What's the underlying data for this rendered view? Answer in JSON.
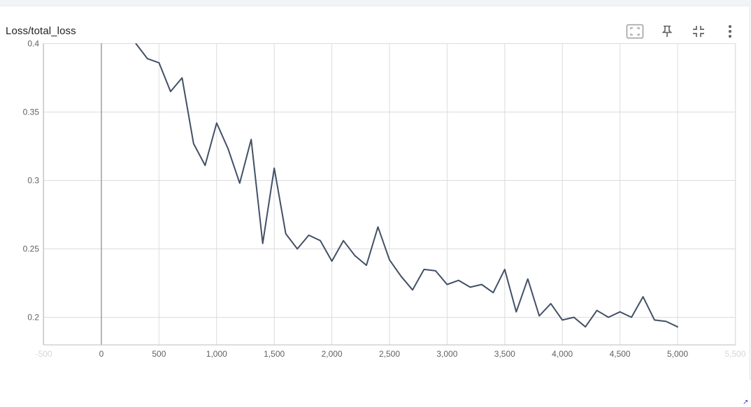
{
  "card": {
    "title": "Loss/total_loss",
    "toolbar": [
      {
        "name": "fit-domain-button",
        "icon": "fit-screen-icon"
      },
      {
        "name": "pin-button",
        "icon": "pin-icon"
      },
      {
        "name": "collapse-button",
        "icon": "collapse-icon"
      },
      {
        "name": "more-options-button",
        "icon": "more-vert-icon"
      }
    ]
  },
  "chart_data": {
    "type": "line",
    "title": "Loss/total_loss",
    "xlabel": "",
    "ylabel": "",
    "xlim": [
      -500,
      5500
    ],
    "ylim": [
      0.18,
      0.4
    ],
    "x_ticks": [
      -500,
      0,
      500,
      1000,
      1500,
      2000,
      2500,
      3000,
      3500,
      4000,
      4500,
      5000,
      5500
    ],
    "x_tick_labels": [
      "-500",
      "0",
      "500",
      "1,000",
      "1,500",
      "2,000",
      "2,500",
      "3,000",
      "3,500",
      "4,000",
      "4,500",
      "5,000",
      "5,500"
    ],
    "y_ticks": [
      0.2,
      0.25,
      0.3,
      0.35,
      0.4
    ],
    "y_tick_labels": [
      "0.2",
      "0.25",
      "0.3",
      "0.35",
      "0.4"
    ],
    "grid": true,
    "line_color": "#425066",
    "series": [
      {
        "x": [
          300,
          400,
          500,
          600,
          700,
          800,
          900,
          1000,
          1100,
          1200,
          1300,
          1400,
          1500,
          1600,
          1700,
          1800,
          1900,
          2000,
          2100,
          2200,
          2300,
          2400,
          2500,
          2600,
          2700,
          2800,
          2900,
          3000,
          3100,
          3200,
          3300,
          3400,
          3500,
          3600,
          3700,
          3800,
          3900,
          4000,
          4100,
          4200,
          4300,
          4400,
          4500,
          4600,
          4700,
          4800,
          4900,
          5000
        ],
        "y": [
          0.4,
          0.389,
          0.386,
          0.365,
          0.375,
          0.327,
          0.311,
          0.342,
          0.323,
          0.298,
          0.33,
          0.254,
          0.309,
          0.261,
          0.25,
          0.26,
          0.256,
          0.241,
          0.256,
          0.245,
          0.238,
          0.266,
          0.242,
          0.23,
          0.22,
          0.235,
          0.234,
          0.224,
          0.227,
          0.222,
          0.224,
          0.218,
          0.235,
          0.204,
          0.228,
          0.201,
          0.21,
          0.198,
          0.2,
          0.193,
          0.205,
          0.2,
          0.204,
          0.2,
          0.215,
          0.198,
          0.197,
          0.193
        ]
      }
    ]
  }
}
